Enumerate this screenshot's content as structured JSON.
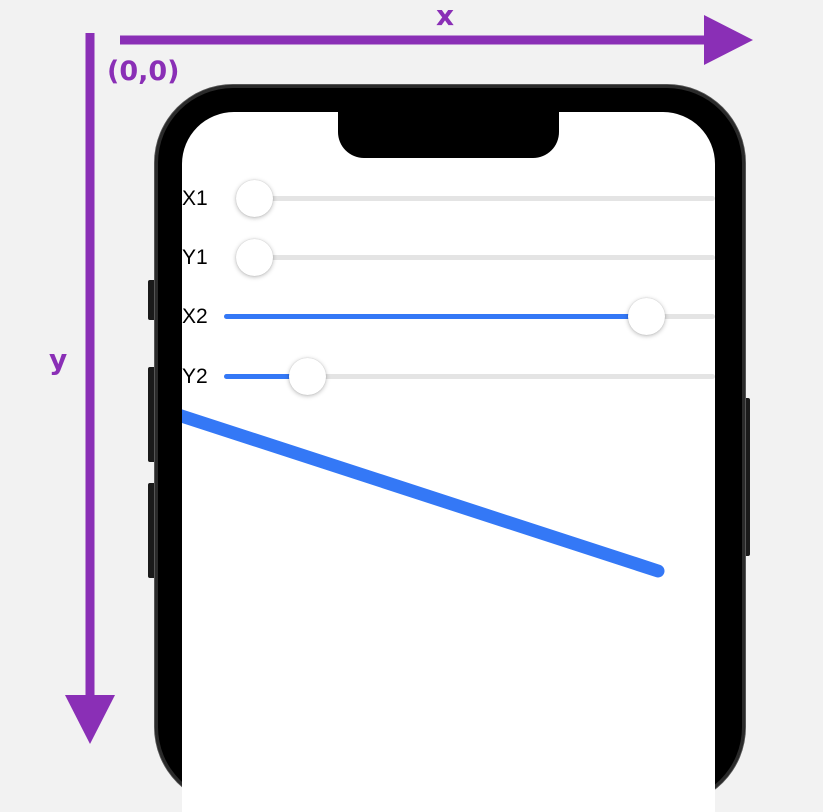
{
  "axes": {
    "x_label": "x",
    "y_label": "y",
    "origin_label": "(0,0)",
    "color": "#8a2fb6"
  },
  "sliders": [
    {
      "label": "X1",
      "value": 0.0
    },
    {
      "label": "Y1",
      "value": 0.0
    },
    {
      "label": "X2",
      "value": 0.86
    },
    {
      "label": "Y2",
      "value": 0.17
    }
  ],
  "line": {
    "color": "#3478f6"
  },
  "accent_color": "#3478f6"
}
